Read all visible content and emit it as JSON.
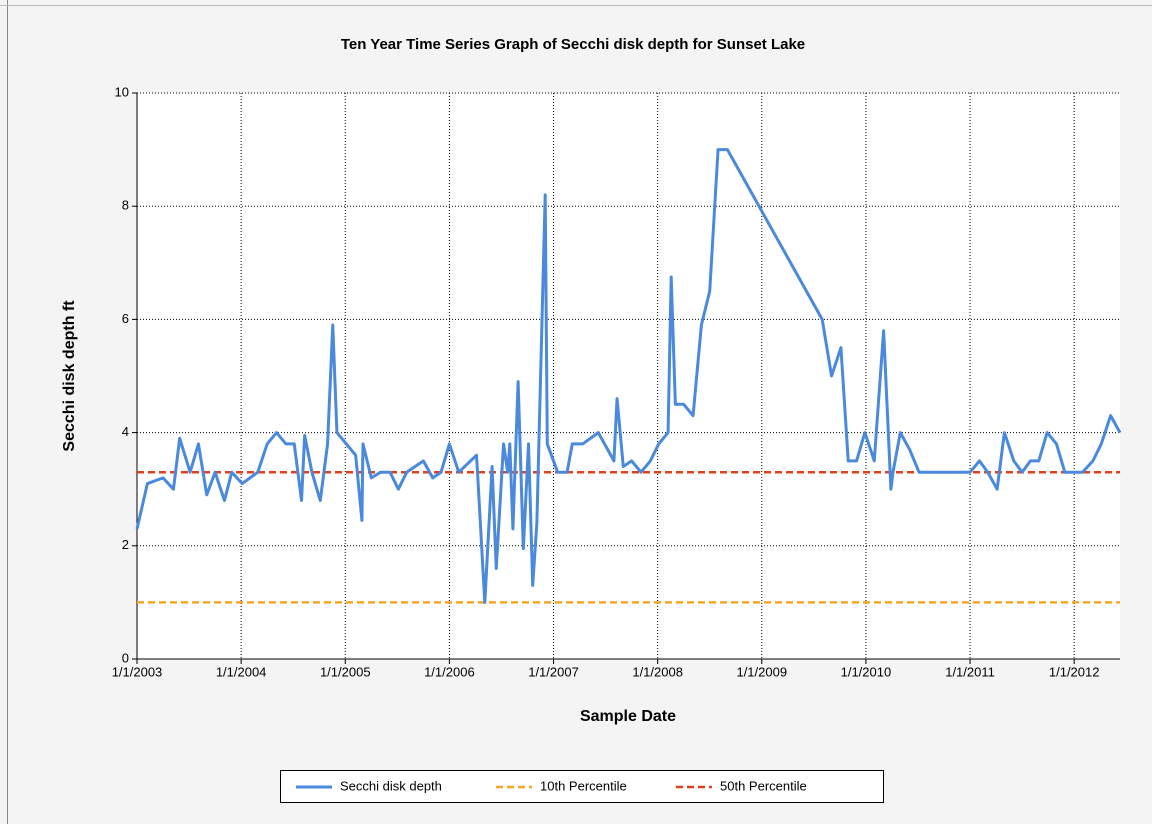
{
  "chart_data": {
    "type": "line",
    "title": "Ten Year Time Series Graph of Secchi disk depth for Sunset Lake",
    "x_label": "Sample Date",
    "y_label": "Secchi disk depth ft",
    "x": [
      2003.0,
      2003.1,
      2003.25,
      2003.35,
      2003.41,
      2003.51,
      2003.59,
      2003.67,
      2003.75,
      2003.84,
      2003.91,
      2004.01,
      2004.16,
      2004.25,
      2004.34,
      2004.43,
      2004.51,
      2004.58,
      2004.61,
      2004.68,
      2004.76,
      2004.83,
      2004.88,
      2004.92,
      2005.1,
      2005.16,
      2005.17,
      2005.25,
      2005.34,
      2005.43,
      2005.51,
      2005.59,
      2005.75,
      2005.84,
      2005.92,
      2006.0,
      2006.09,
      2006.26,
      2006.27,
      2006.34,
      2006.41,
      2006.45,
      2006.52,
      2006.56,
      2006.58,
      2006.61,
      2006.66,
      2006.71,
      2006.76,
      2006.8,
      2006.84,
      2006.92,
      2006.94,
      2007.04,
      2007.13,
      2007.18,
      2007.28,
      2007.43,
      2007.58,
      2007.61,
      2007.67,
      2007.75,
      2007.84,
      2007.93,
      2008.01,
      2008.1,
      2008.13,
      2008.17,
      2008.25,
      2008.34,
      2008.42,
      2008.5,
      2008.58,
      2008.67,
      2009.58,
      2009.67,
      2009.76,
      2009.83,
      2009.91,
      2009.99,
      2010.08,
      2010.17,
      2010.24,
      2010.26,
      2010.33,
      2010.42,
      2010.51,
      2011.0,
      2011.09,
      2011.17,
      2011.26,
      2011.33,
      2011.42,
      2011.5,
      2011.58,
      2011.66,
      2011.74,
      2011.83,
      2011.91,
      2012.08,
      2012.18,
      2012.26,
      2012.35,
      2012.44
    ],
    "series": [
      {
        "name": "Secchi disk depth",
        "color": "#4a89dc",
        "values": [
          2.3,
          3.1,
          3.2,
          3.0,
          3.9,
          3.3,
          3.8,
          2.9,
          3.3,
          2.8,
          3.3,
          3.1,
          3.3,
          3.8,
          4.0,
          3.8,
          3.8,
          2.8,
          3.95,
          3.3,
          2.8,
          3.8,
          5.9,
          4.0,
          3.6,
          2.45,
          3.8,
          3.2,
          3.3,
          3.3,
          3.0,
          3.3,
          3.5,
          3.2,
          3.3,
          3.8,
          3.3,
          3.6,
          3.3,
          1.0,
          3.4,
          1.6,
          3.8,
          3.3,
          3.8,
          2.3,
          4.9,
          1.95,
          3.8,
          1.3,
          2.4,
          8.2,
          3.8,
          3.3,
          3.3,
          3.8,
          3.8,
          4.0,
          3.5,
          4.6,
          3.4,
          3.5,
          3.3,
          3.5,
          3.8,
          4.0,
          6.75,
          4.5,
          4.5,
          4.3,
          5.9,
          6.5,
          9.0,
          9.0,
          6.0,
          5.0,
          5.5,
          3.5,
          3.5,
          4.0,
          3.5,
          5.8,
          3.0,
          3.3,
          4.0,
          3.7,
          3.3,
          3.3,
          3.5,
          3.3,
          3.0,
          4.0,
          3.5,
          3.3,
          3.5,
          3.5,
          4.0,
          3.8,
          3.3,
          3.3,
          3.5,
          3.8,
          4.3,
          4.0
        ]
      }
    ],
    "reference_lines": [
      {
        "name": "10th Percentile",
        "color": "#f5a623",
        "value": 1.0
      },
      {
        "name": "50th Percentile",
        "color": "#e0401c",
        "value": 3.3
      }
    ],
    "xlim": [
      2003,
      2012.44
    ],
    "ylim": [
      0,
      10
    ],
    "xticks": [
      {
        "value": 2003,
        "label": "1/1/2003"
      },
      {
        "value": 2004,
        "label": "1/1/2004"
      },
      {
        "value": 2005,
        "label": "1/1/2005"
      },
      {
        "value": 2006,
        "label": "1/1/2006"
      },
      {
        "value": 2007,
        "label": "1/1/2007"
      },
      {
        "value": 2008,
        "label": "1/1/2008"
      },
      {
        "value": 2009,
        "label": "1/1/2009"
      },
      {
        "value": 2010,
        "label": "1/1/2010"
      },
      {
        "value": 2011,
        "label": "1/1/2011"
      },
      {
        "value": 2012,
        "label": "1/1/2012"
      }
    ],
    "yticks": [
      0,
      2,
      4,
      6,
      8,
      10
    ],
    "grid": true
  }
}
